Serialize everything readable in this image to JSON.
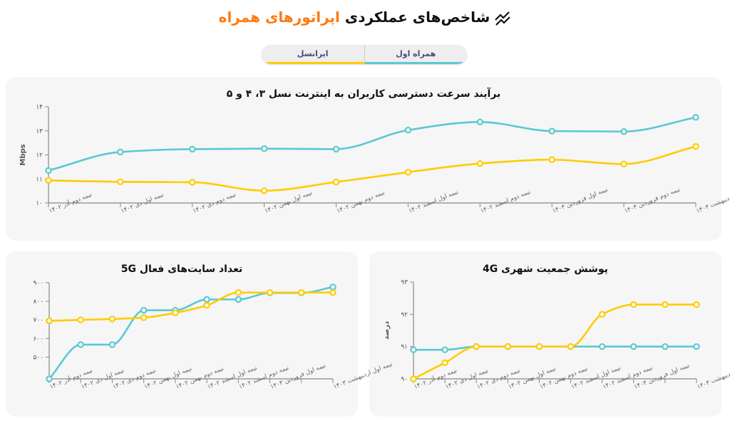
{
  "header": {
    "title_main": "شاخص‌های عملکردی",
    "title_accent": "اپراتورهای همراه",
    "icon": "trending-chart-icon",
    "accent_color": "#ff7a10"
  },
  "tabs": [
    {
      "label": "همراه اول",
      "color": "#5bc8d4",
      "active": true
    },
    {
      "label": "ایرانسل",
      "color": "#ffcc00"
    }
  ],
  "chart_data": [
    {
      "type": "line",
      "title": "برآیند سرعت دسترسی کاربران به اینترنت نسل ۳، ۴ و ۵",
      "ylabel": "Mbps",
      "ylim": [
        10,
        14
      ],
      "yticks": [
        {
          "v": 10,
          "label": "۱۰"
        },
        {
          "v": 11,
          "label": "۱۱"
        },
        {
          "v": 12,
          "label": "۱۲"
        },
        {
          "v": 13,
          "label": "۱۳"
        },
        {
          "v": 14,
          "label": "۱۴"
        }
      ],
      "categories": [
        "نیمه دوم آذر ۱۴۰۲",
        "نیمه اول دی ۱۴۰۲",
        "نیمه دوم دی ۱۴۰۲",
        "نیمه اول بهمن ۱۴۰۲",
        "نیمه دوم بهمن ۱۴۰۲",
        "نیمه اول اسفند ۱۴۰۲",
        "نیمه دوم اسفند ۱۴۰۲",
        "نیمه اول فروردین ۱۴۰۳",
        "نیمه دوم فروردین ۱۴۰۳",
        "نیمه اول اردیبهشت ۱۴۰۳"
      ],
      "series": [
        {
          "color": "#5bc8d4",
          "values": [
            11.35,
            12.12,
            12.24,
            12.26,
            12.24,
            13.03,
            13.37,
            12.99,
            12.97,
            13.56
          ]
        },
        {
          "color": "#ffcc00",
          "values": [
            10.94,
            10.88,
            10.86,
            10.51,
            10.87,
            11.28,
            11.64,
            11.8,
            11.62,
            12.35
          ]
        }
      ]
    },
    {
      "type": "line",
      "title": "تعداد سایت‌های فعال 5G",
      "ylabel": "",
      "ylim": [
        383,
        900
      ],
      "yticks": [
        {
          "v": 500,
          "label": "۵۰۰"
        },
        {
          "v": 600,
          "label": "۶۰۰"
        },
        {
          "v": 700,
          "label": "۷۰۰"
        },
        {
          "v": 800,
          "label": "۸۰۰"
        },
        {
          "v": 900,
          "label": "۹۰۰"
        }
      ],
      "categories": [
        "نیمه دوم آذر ۱۴۰۲",
        "نیمه اول دی ۱۴۰۲",
        "نیمه دوم دی ۱۴۰۲",
        "نیمه اول بهمن ۱۴۰۲",
        "نیمه دوم بهمن ۱۴۰۲",
        "نیمه اول اسفند ۱۴۰۲",
        "نیمه دوم اسفند ۱۴۰۲",
        "نیمه اول فروردین ۱۴۰۳",
        "",
        "نیمه اول اردیبهشت ۱۴۰۳"
      ],
      "series": [
        {
          "color": "#5bc8d4",
          "values": [
            383,
            567,
            567,
            752,
            752,
            810,
            810,
            845,
            845,
            877
          ]
        },
        {
          "color": "#ffcc00",
          "values": [
            695,
            700,
            705,
            712,
            738,
            778,
            847,
            847,
            847,
            847
          ]
        }
      ]
    },
    {
      "type": "line",
      "title": "پوشش جمعیت شهری 4G",
      "ylabel": "درصد",
      "ylim": [
        90,
        93
      ],
      "yticks": [
        {
          "v": 90,
          "label": "۹۰"
        },
        {
          "v": 91,
          "label": "۹۱"
        },
        {
          "v": 92,
          "label": "۹۲"
        },
        {
          "v": 93,
          "label": "۹۳"
        }
      ],
      "categories": [
        "نیمه دوم آذر ۱۴۰۲",
        "نیمه اول دی ۱۴۰۲",
        "نیمه دوم دی ۱۴۰۲",
        "نیمه اول بهمن ۱۴۰۲",
        "نیمه دوم بهمن ۱۴۰۲",
        "نیمه اول اسفند ۱۴۰۲",
        "نیمه دوم اسفند ۱۴۰۲",
        "نیمه اول فروردین ۱۴۰۳",
        "",
        "نیمه اول اردیبهشت ۱۴۰۳"
      ],
      "series": [
        {
          "color": "#5bc8d4",
          "values": [
            90.9,
            90.9,
            91,
            91,
            91,
            91,
            91,
            91,
            91,
            91
          ]
        },
        {
          "color": "#ffcc00",
          "values": [
            90,
            90.5,
            91,
            91,
            91,
            91,
            92,
            92.3,
            92.3,
            92.3
          ]
        }
      ]
    }
  ]
}
